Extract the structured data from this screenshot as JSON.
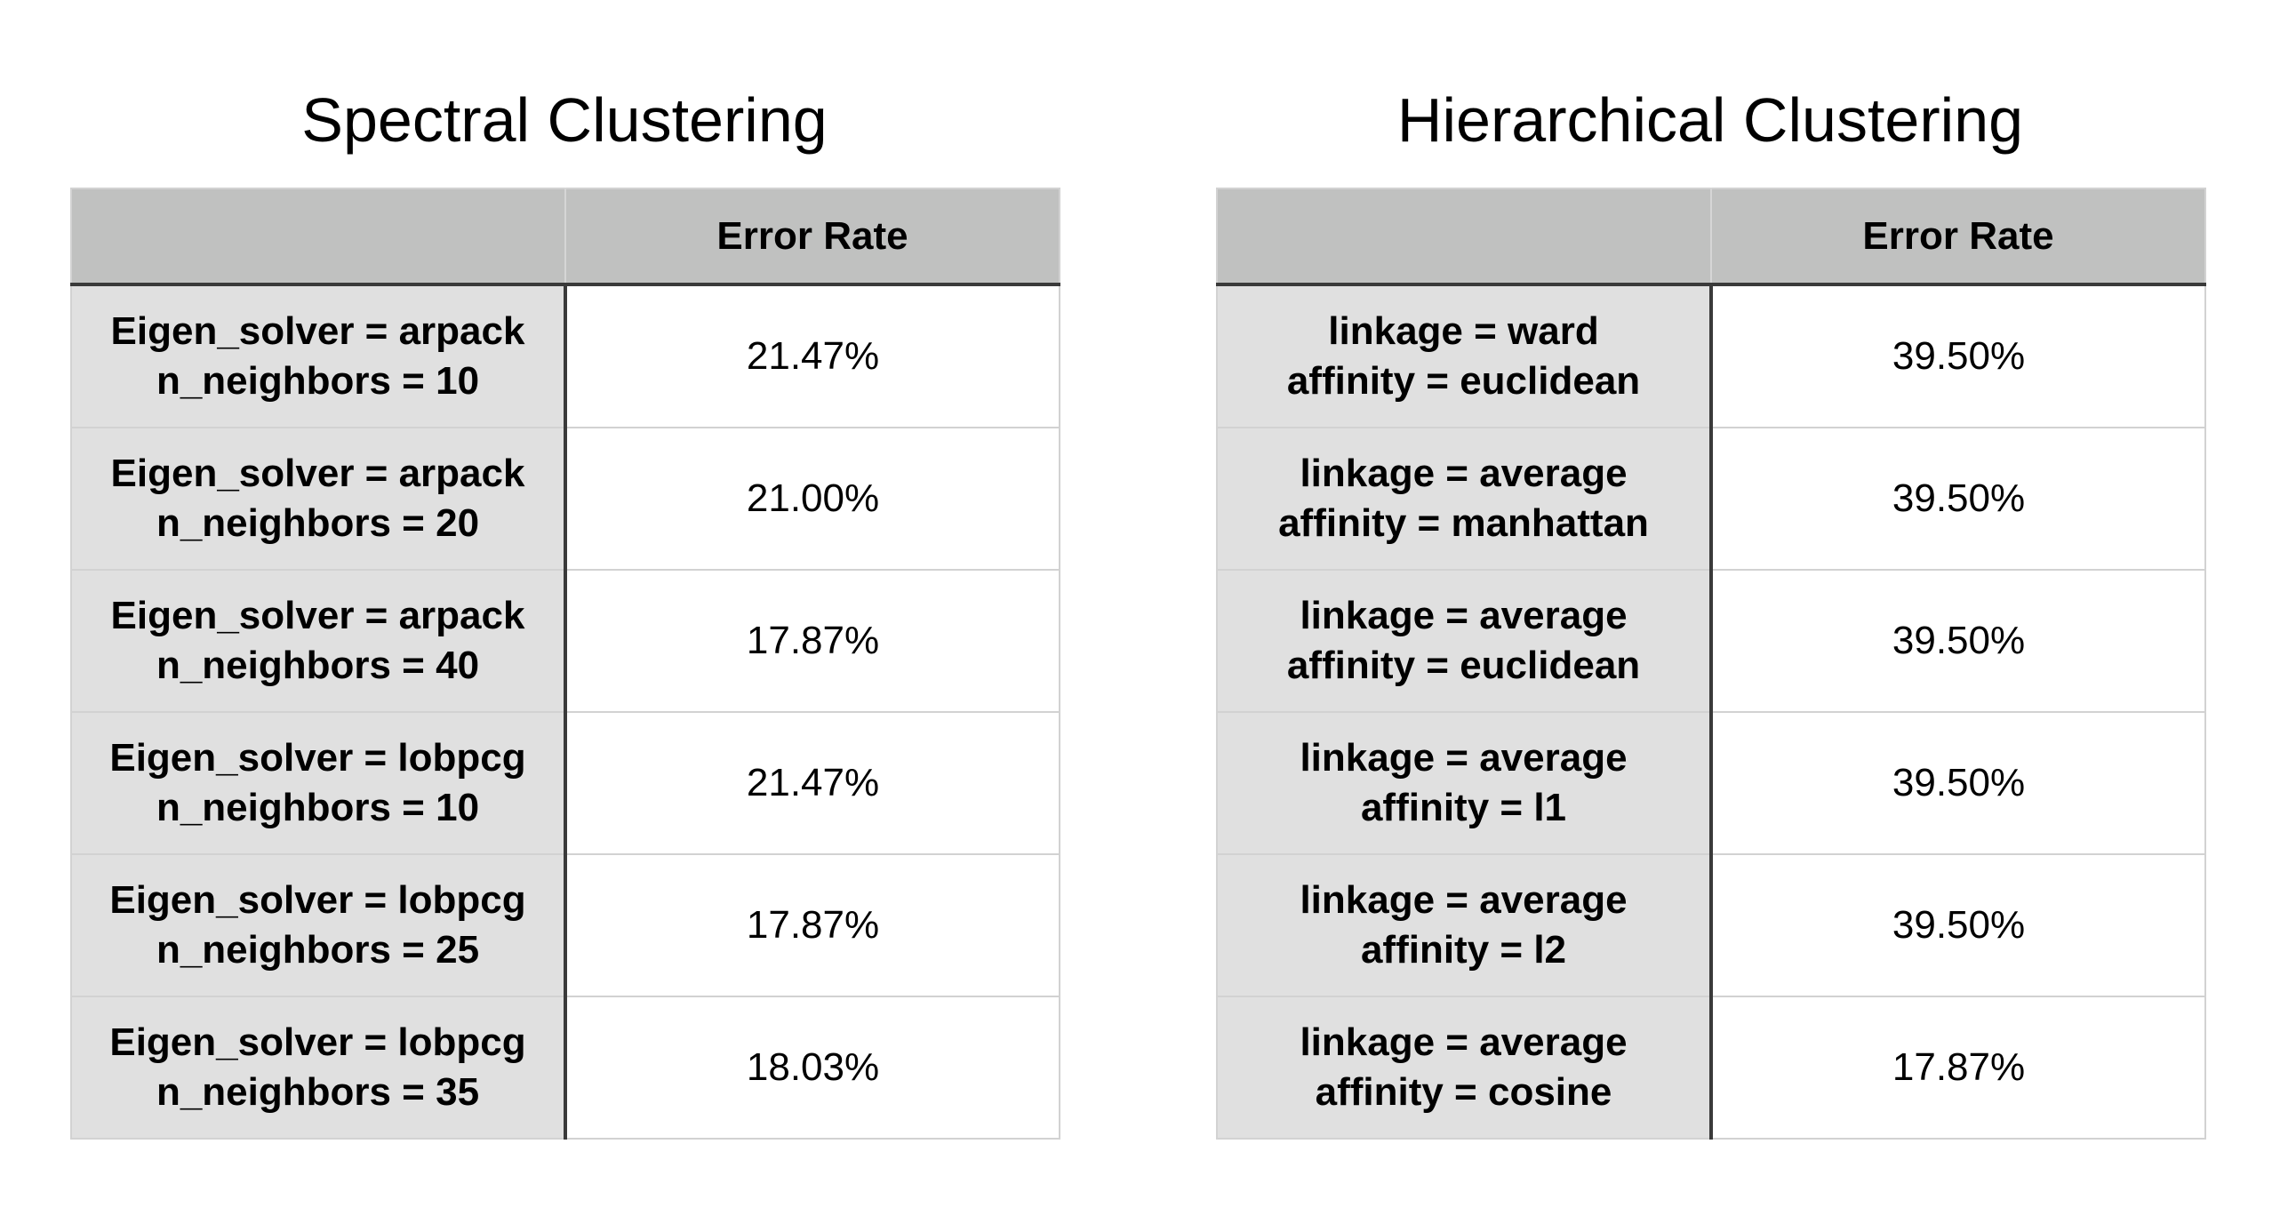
{
  "spectral": {
    "title": "Spectral Clustering",
    "header": {
      "param": "",
      "value": "Error Rate"
    },
    "rows": [
      {
        "line1": "Eigen_solver = arpack",
        "line2": "n_neighbors = 10",
        "value": "21.47%"
      },
      {
        "line1": "Eigen_solver = arpack",
        "line2": "n_neighbors = 20",
        "value": "21.00%"
      },
      {
        "line1": "Eigen_solver = arpack",
        "line2": "n_neighbors = 40",
        "value": "17.87%"
      },
      {
        "line1": "Eigen_solver = lobpcg",
        "line2": "n_neighbors = 10",
        "value": "21.47%"
      },
      {
        "line1": "Eigen_solver = lobpcg",
        "line2": "n_neighbors = 25",
        "value": "17.87%"
      },
      {
        "line1": "Eigen_solver = lobpcg",
        "line2": "n_neighbors = 35",
        "value": "18.03%"
      }
    ]
  },
  "hierarchical": {
    "title": "Hierarchical Clustering",
    "header": {
      "param": "",
      "value": "Error Rate"
    },
    "rows": [
      {
        "line1": "linkage = ward",
        "line2": "affinity = euclidean",
        "value": "39.50%"
      },
      {
        "line1": "linkage = average",
        "line2": "affinity = manhattan",
        "value": "39.50%"
      },
      {
        "line1": "linkage = average",
        "line2": "affinity = euclidean",
        "value": "39.50%"
      },
      {
        "line1": "linkage = average",
        "line2": "affinity = l1",
        "value": "39.50%"
      },
      {
        "line1": "linkage = average",
        "line2": "affinity = l2",
        "value": "39.50%"
      },
      {
        "line1": "linkage = average",
        "line2": "affinity = cosine",
        "value": "17.87%"
      }
    ]
  }
}
